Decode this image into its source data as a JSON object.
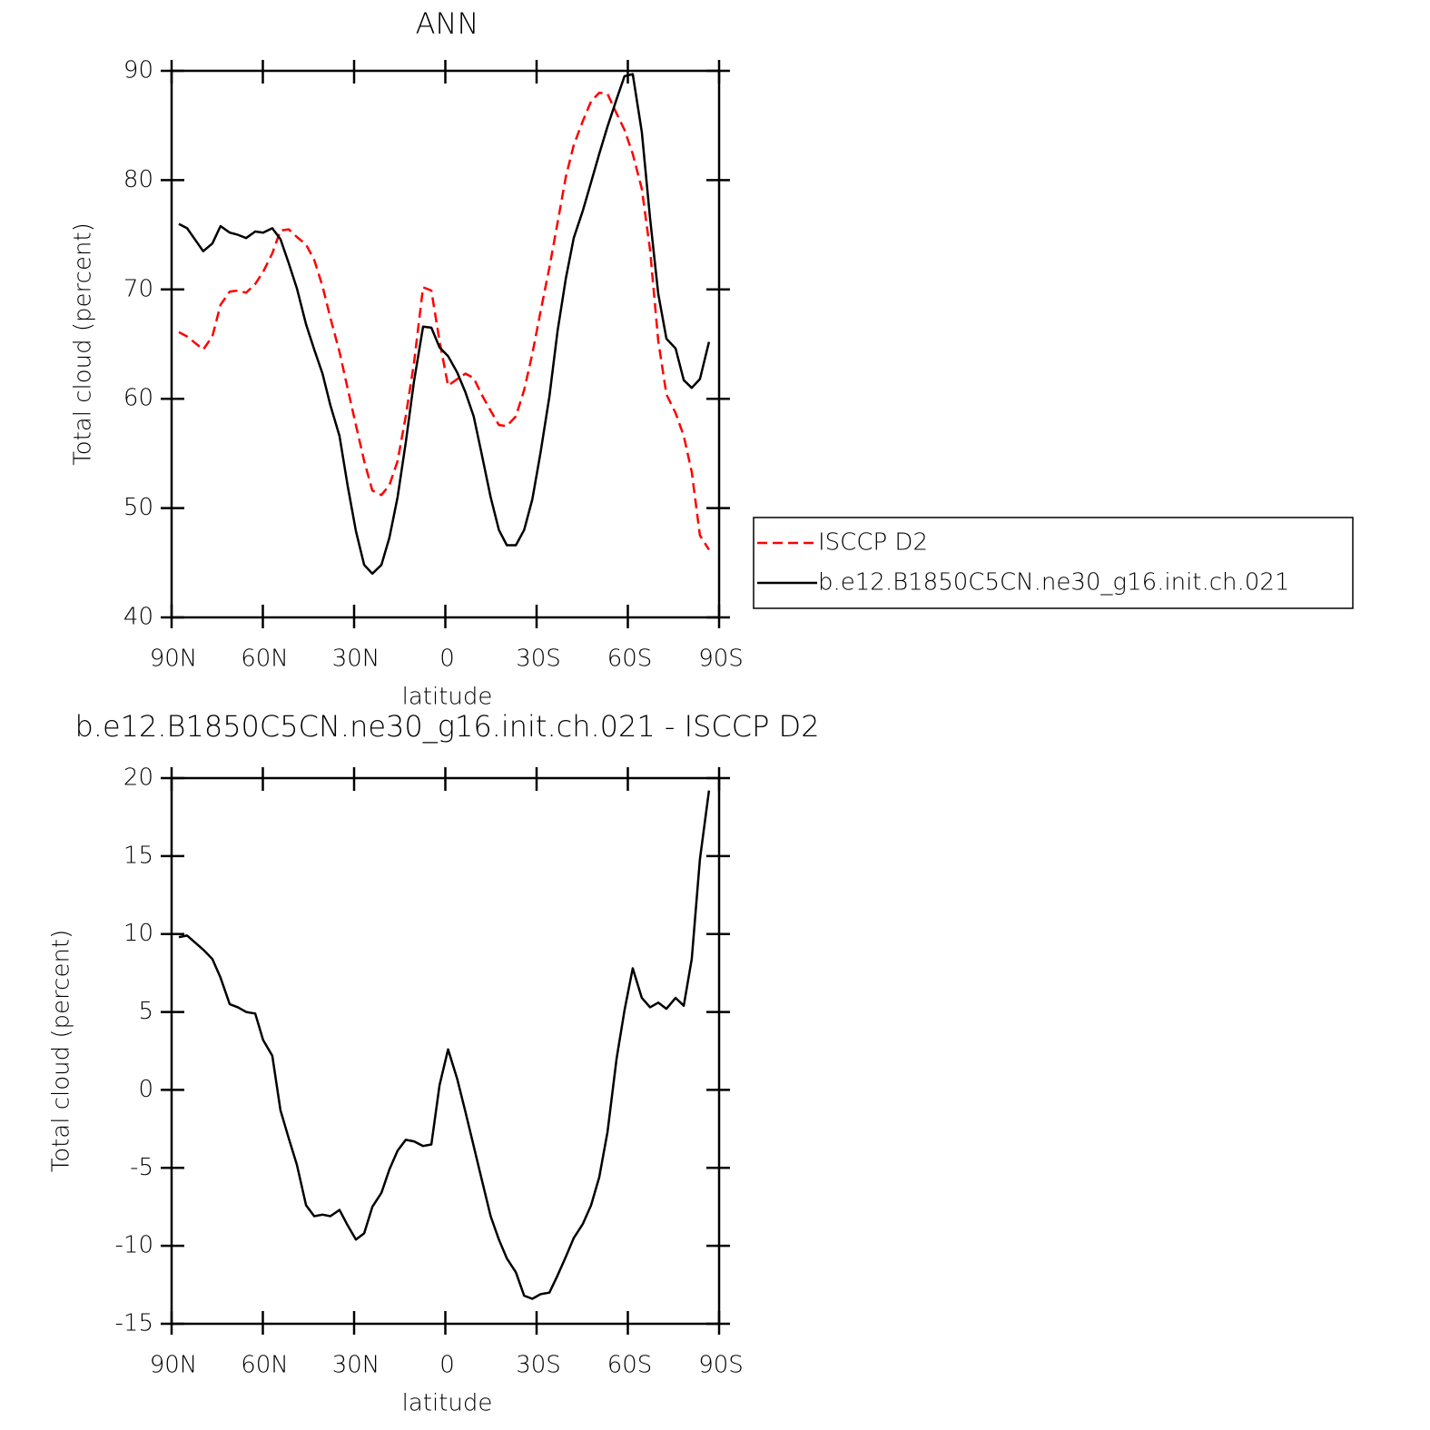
{
  "chart_data": [
    {
      "type": "line",
      "title": "ANN",
      "xlabel": "latitude",
      "ylabel": "Total cloud (percent)",
      "x": [
        87.6,
        84.9,
        79.6,
        76.6,
        73.9,
        70.9,
        68.2,
        65.5,
        62.5,
        59.9,
        56.9,
        54.2,
        51.5,
        48.8,
        45.8,
        43.1,
        40.4,
        37.8,
        34.8,
        32.1,
        29.4,
        26.7,
        24.0,
        21.0,
        18.4,
        15.7,
        13.0,
        10.3,
        7.3,
        4.6,
        1.9,
        -0.9,
        -3.9,
        -6.6,
        -9.3,
        -11.9,
        -14.9,
        -17.6,
        -20.2,
        -23.2,
        -25.9,
        -28.6,
        -31.3,
        -34.2,
        -36.9,
        -39.6,
        -42.2,
        -45.2,
        -47.9,
        -50.6,
        -53.3,
        -56.3,
        -58.9,
        -61.6,
        -64.6,
        -67.3,
        -70.0,
        -72.7,
        -75.7,
        -78.4,
        -81.0,
        -83.7,
        -86.7
      ],
      "series": [
        {
          "name": "ISCCP D2",
          "color": "#ff0000",
          "linestyle": "dashed",
          "values": [
            66.1,
            65.7,
            64.5,
            65.7,
            68.6,
            69.8,
            69.9,
            69.7,
            70.5,
            71.6,
            73.3,
            75.4,
            75.5,
            74.8,
            74.1,
            72.7,
            70.3,
            67.4,
            64.3,
            60.9,
            57.6,
            54.3,
            51.6,
            51.2,
            52.1,
            54.3,
            58.4,
            63.3,
            70.2,
            69.9,
            65.3,
            61.2,
            61.8,
            62.3,
            61.9,
            60.4,
            58.9,
            57.6,
            57.5,
            58.4,
            60.8,
            64.1,
            68.0,
            72.0,
            76.1,
            80.3,
            83.2,
            85.4,
            87.2,
            88.0,
            87.9,
            86.1,
            84.6,
            82.4,
            79.2,
            73.6,
            65.3,
            60.4,
            58.7,
            56.6,
            53.3,
            47.5,
            46.2
          ]
        },
        {
          "name": "b.e12.B1850C5CN.ne30_g16.init.ch.021",
          "color": "#000000",
          "linestyle": "solid",
          "values": [
            76.0,
            75.6,
            73.5,
            74.2,
            75.8,
            75.2,
            75.0,
            74.7,
            75.3,
            75.2,
            75.6,
            74.6,
            72.4,
            70.1,
            66.8,
            64.5,
            62.3,
            59.4,
            56.6,
            52.0,
            47.9,
            44.8,
            44.0,
            44.8,
            47.3,
            51.0,
            56.0,
            61.6,
            66.6,
            66.5,
            64.7,
            63.9,
            62.4,
            60.6,
            58.4,
            55.0,
            51.0,
            48.0,
            46.6,
            46.6,
            48.0,
            50.8,
            55.1,
            60.2,
            66.2,
            71.0,
            74.7,
            77.2,
            79.8,
            82.4,
            84.9,
            87.4,
            89.5,
            89.7,
            84.4,
            76.5,
            69.6,
            65.5,
            64.6,
            61.7,
            61.0,
            61.8,
            65.2
          ]
        }
      ],
      "xlim": [
        90,
        -90
      ],
      "xticks": [
        {
          "value": 90,
          "label": "90N"
        },
        {
          "value": 60,
          "label": "60N"
        },
        {
          "value": 30,
          "label": "30N"
        },
        0,
        {
          "value": -30,
          "label": "30S"
        },
        {
          "value": -60,
          "label": "60S"
        },
        {
          "value": -90,
          "label": "90S"
        }
      ],
      "ylim": [
        40,
        90
      ],
      "yticks": [
        40,
        50,
        60,
        70,
        80,
        90
      ]
    },
    {
      "type": "line",
      "title": "b.e12.B1850C5CN.ne30_g16.init.ch.021 - ISCCP D2",
      "xlabel": "latitude",
      "ylabel": "Total cloud (percent)",
      "x": [
        87.6,
        84.9,
        79.6,
        76.6,
        73.9,
        70.9,
        68.2,
        65.5,
        62.5,
        59.9,
        56.9,
        54.2,
        51.5,
        48.8,
        45.8,
        43.1,
        40.4,
        37.8,
        34.8,
        32.1,
        29.4,
        26.7,
        24.0,
        21.0,
        18.4,
        15.7,
        13.0,
        10.3,
        7.3,
        4.6,
        1.9,
        -0.9,
        -3.9,
        -6.6,
        -9.3,
        -11.9,
        -14.9,
        -17.6,
        -20.2,
        -23.2,
        -25.9,
        -28.6,
        -31.3,
        -34.2,
        -36.9,
        -39.6,
        -42.2,
        -45.2,
        -47.9,
        -50.6,
        -53.3,
        -56.3,
        -58.9,
        -61.6,
        -64.6,
        -67.3,
        -70.0,
        -72.7,
        -75.7,
        -78.4,
        -81.0,
        -83.7,
        -86.7
      ],
      "color": "#000000",
      "values": [
        9.8,
        9.9,
        9.0,
        8.4,
        7.2,
        5.5,
        5.3,
        5.0,
        4.9,
        3.2,
        2.2,
        -1.3,
        -3.1,
        -4.8,
        -7.4,
        -8.1,
        -8.0,
        -8.1,
        -7.7,
        -8.7,
        -9.6,
        -9.2,
        -7.5,
        -6.6,
        -5.1,
        -3.9,
        -3.2,
        -3.3,
        -3.6,
        -3.5,
        0.3,
        2.6,
        0.7,
        -1.4,
        -3.6,
        -5.7,
        -8.1,
        -9.6,
        -10.8,
        -11.7,
        -13.2,
        -13.4,
        -13.1,
        -13.0,
        -11.9,
        -10.7,
        -9.5,
        -8.6,
        -7.4,
        -5.6,
        -2.7,
        2.0,
        5.1,
        7.8,
        5.9,
        5.3,
        5.6,
        5.2,
        5.9,
        5.4,
        8.4,
        14.8,
        19.2
      ],
      "xlim": [
        90,
        -90
      ],
      "xticks": [
        {
          "value": 90,
          "label": "90N"
        },
        {
          "value": 60,
          "label": "60N"
        },
        {
          "value": 30,
          "label": "30N"
        },
        0,
        {
          "value": -30,
          "label": "30S"
        },
        {
          "value": -60,
          "label": "60S"
        },
        {
          "value": -90,
          "label": "90S"
        }
      ],
      "ylim": [
        -15,
        20
      ],
      "yticks": [
        -15,
        -10,
        -5,
        0,
        5,
        10,
        15,
        20
      ]
    }
  ]
}
